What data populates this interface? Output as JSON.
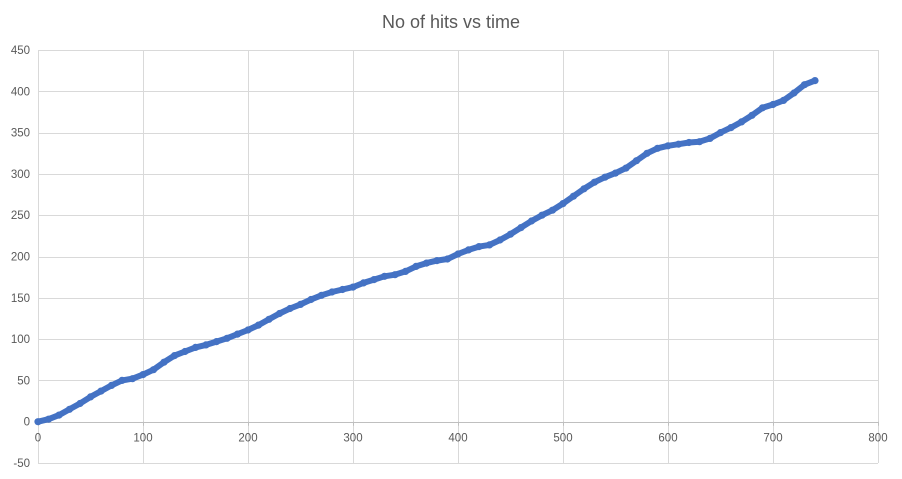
{
  "chart_data": {
    "type": "scatter",
    "title": "No of hits vs time",
    "xlabel": "",
    "ylabel": "",
    "xlim": [
      0,
      800
    ],
    "ylim": [
      -50,
      450
    ],
    "x_ticks": [
      0,
      100,
      200,
      300,
      400,
      500,
      600,
      700,
      800
    ],
    "y_ticks": [
      -50,
      0,
      50,
      100,
      150,
      200,
      250,
      300,
      350,
      400,
      450
    ],
    "grid": true,
    "legend": "none",
    "series_color": "#4472C4",
    "series": [
      {
        "x": [
          0,
          10,
          20,
          30,
          40,
          50,
          60,
          70,
          80,
          90,
          100,
          110,
          120,
          130,
          140,
          150,
          160,
          170,
          180,
          190,
          200,
          210,
          220,
          230,
          240,
          250,
          260,
          270,
          280,
          290,
          300,
          310,
          320,
          330,
          340,
          350,
          360,
          370,
          380,
          390,
          400,
          410,
          420,
          430,
          440,
          450,
          460,
          470,
          480,
          490,
          500,
          510,
          520,
          530,
          540,
          550,
          560,
          570,
          580,
          590,
          600,
          610,
          620,
          630,
          640,
          650,
          660,
          670,
          680,
          690,
          700,
          710,
          720,
          730,
          740
        ],
        "y": [
          0,
          3,
          8,
          15,
          22,
          30,
          37,
          44,
          50,
          52,
          57,
          63,
          72,
          80,
          85,
          90,
          93,
          97,
          101,
          106,
          111,
          117,
          124,
          131,
          137,
          142,
          148,
          153,
          157,
          160,
          163,
          168,
          172,
          176,
          178,
          182,
          188,
          192,
          195,
          197,
          203,
          208,
          212,
          214,
          220,
          227,
          235,
          243,
          250,
          256,
          264,
          273,
          282,
          290,
          296,
          301,
          307,
          316,
          325,
          331,
          334,
          336,
          338,
          339,
          343,
          350,
          356,
          363,
          371,
          380,
          384,
          389,
          398,
          408,
          413
        ]
      }
    ]
  }
}
